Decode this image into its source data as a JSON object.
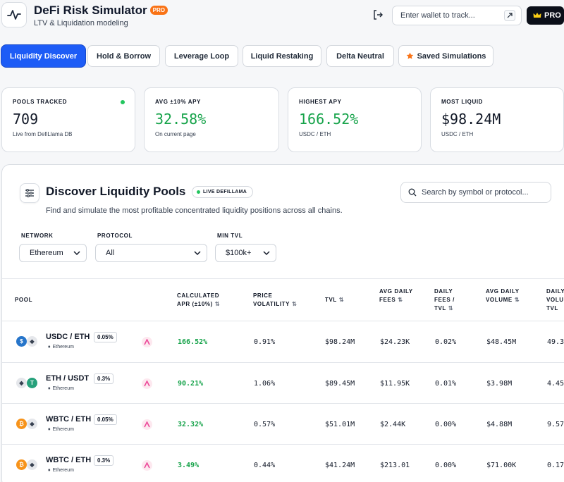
{
  "header": {
    "title": "DeFi Risk Simulator",
    "pro_badge": "PRO",
    "subtitle": "LTV & Liquidation modeling",
    "wallet_placeholder": "Enter wallet to track...",
    "pro_button": "PRO",
    "icons": [
      "pulse-icon",
      "login-icon",
      "arrow-icon",
      "crown-icon"
    ]
  },
  "tabs": [
    {
      "label": "Liquidity Discover",
      "active": true
    },
    {
      "label": "Hold & Borrow",
      "active": false
    },
    {
      "label": "Leverage Loop",
      "active": false
    },
    {
      "label": "Liquid Restaking",
      "active": false
    },
    {
      "label": "Delta Neutral",
      "active": false
    },
    {
      "label": "Saved Simulations",
      "active": false,
      "icon": "star-icon"
    }
  ],
  "stats": [
    {
      "label": "POOLS TRACKED",
      "value": "709",
      "sub": "Live from DefiLlama DB"
    },
    {
      "label": "AVG ±10% APY",
      "value": "32.58%",
      "sub": "On current page"
    },
    {
      "label": "HIGHEST APY",
      "value": "166.52%",
      "sub": "USDC / ETH"
    },
    {
      "label": "MOST LIQUID",
      "value": "$98.24M",
      "sub": "USDC / ETH"
    }
  ],
  "discover": {
    "title": "Discover Liquidity Pools",
    "live_badge": "LIVE DEFILLAMA",
    "subtitle": "Find and simulate the most profitable concentrated liquidity positions across all chains.",
    "search_placeholder": "Search by symbol or protocol...",
    "filters": {
      "network_label": "NETWORK",
      "network_value": "Ethereum",
      "protocol_label": "PROTOCOL",
      "protocol_value": "All",
      "tvl_label": "MIN TVL",
      "tvl_value": "$100k+"
    }
  },
  "table": {
    "columns": [
      "POOL",
      "CALCULATED APR (±10%)",
      "PRICE VOLATILITY",
      "TVL",
      "AVG DAILY FEES",
      "DAILY FEES / TVL",
      "AVG DAILY VOLUME",
      "DAILY VOLU / TVL"
    ],
    "rows": [
      {
        "pair": "USDC / ETH",
        "fee": "0.05%",
        "chain": "Ethereum",
        "apr": "166.52%",
        "vol": "0.91%",
        "tvl": "$98.24M",
        "fees": "$24.23K",
        "fees_tvl": "0.02%",
        "volume": "$48.45M",
        "vol_tvl": "49.3"
      },
      {
        "pair": "ETH / USDT",
        "fee": "0.3%",
        "chain": "Ethereum",
        "apr": "90.21%",
        "vol": "1.06%",
        "tvl": "$89.45M",
        "fees": "$11.95K",
        "fees_tvl": "0.01%",
        "volume": "$3.98M",
        "vol_tvl": "4.45"
      },
      {
        "pair": "WBTC / ETH",
        "fee": "0.05%",
        "chain": "Ethereum",
        "apr": "32.32%",
        "vol": "0.57%",
        "tvl": "$51.01M",
        "fees": "$2.44K",
        "fees_tvl": "0.00%",
        "volume": "$4.88M",
        "vol_tvl": "9.57"
      },
      {
        "pair": "WBTC / ETH",
        "fee": "0.3%",
        "chain": "Ethereum",
        "apr": "3.49%",
        "vol": "0.44%",
        "tvl": "$41.24M",
        "fees": "$213.01",
        "fees_tvl": "0.00%",
        "volume": "$71.00K",
        "vol_tvl": "0.17"
      }
    ]
  },
  "colors": {
    "accent": "#1d5cf6",
    "positive": "#16a34a",
    "pro": "#f97316",
    "live": "#22c55e"
  }
}
